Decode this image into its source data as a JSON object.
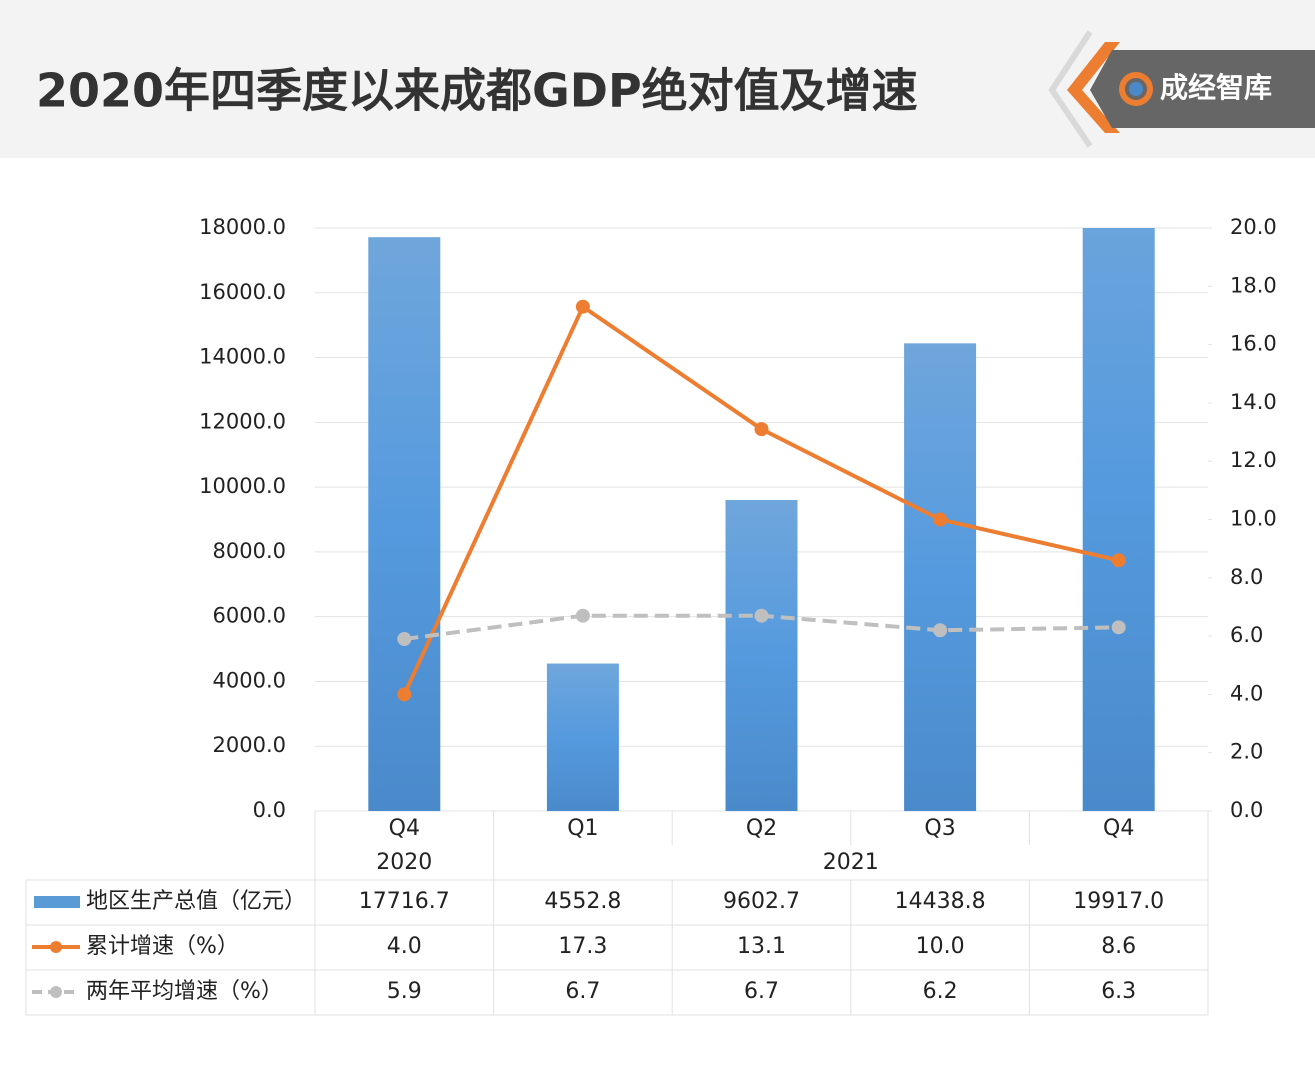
{
  "brand": "成经智库",
  "chart_data": {
    "type": "combo",
    "title": "2020年四季度以来成都GDP绝对值及增速",
    "categories": [
      "Q4",
      "Q1",
      "Q2",
      "Q3",
      "Q4"
    ],
    "x_groups": [
      {
        "label": "2020",
        "span": 1
      },
      {
        "label": "2021",
        "span": 4
      }
    ],
    "ylim": [
      0,
      18000
    ],
    "yticks": [
      {
        "value": 0,
        "label": "0.0"
      },
      {
        "value": 2000,
        "label": "2000.0"
      },
      {
        "value": 4000,
        "label": "4000.0"
      },
      {
        "value": 6000,
        "label": "6000.0"
      },
      {
        "value": 8000,
        "label": "8000.0"
      },
      {
        "value": 10000,
        "label": "10000.0"
      },
      {
        "value": 12000,
        "label": "12000.0"
      },
      {
        "value": 14000,
        "label": "14000.0"
      },
      {
        "value": 16000,
        "label": "16000.0"
      },
      {
        "value": 18000,
        "label": "18000.0"
      }
    ],
    "y2lim": [
      0,
      20
    ],
    "y2ticks": [
      {
        "value": 0,
        "label": "0.0"
      },
      {
        "value": 2,
        "label": "2.0"
      },
      {
        "value": 4,
        "label": "4.0"
      },
      {
        "value": 6,
        "label": "6.0"
      },
      {
        "value": 8,
        "label": "8.0"
      },
      {
        "value": 10,
        "label": "10.0"
      },
      {
        "value": 12,
        "label": "12.0"
      },
      {
        "value": 14,
        "label": "14.0"
      },
      {
        "value": 16,
        "label": "16.0"
      },
      {
        "value": 18,
        "label": "18.0"
      },
      {
        "value": 20,
        "label": "20.0"
      }
    ],
    "grid": true,
    "series": [
      {
        "name": "地区生产总值（亿元）",
        "type": "bar",
        "color": "#5b9bd5",
        "values": [
          17716.7,
          4552.8,
          9602.7,
          14438.8,
          19917.0
        ],
        "value_labels": [
          "17716.7",
          "4552.8",
          "9602.7",
          "14438.8",
          "19917.0"
        ]
      },
      {
        "name": "累计增速（%）",
        "type": "line",
        "axis": "y2",
        "color": "#ed7d31",
        "line_style": "solid",
        "values": [
          4.0,
          17.3,
          13.1,
          10.0,
          8.6
        ],
        "value_labels": [
          "4.0",
          "17.3",
          "13.1",
          "10.0",
          "8.6"
        ]
      },
      {
        "name": "两年平均增速（%）",
        "type": "line",
        "axis": "y2",
        "color": "#bfbfbf",
        "line_style": "dashed",
        "values": [
          5.9,
          6.7,
          6.7,
          6.2,
          6.3
        ],
        "value_labels": [
          "5.9",
          "6.7",
          "6.7",
          "6.2",
          "6.3"
        ]
      }
    ]
  }
}
